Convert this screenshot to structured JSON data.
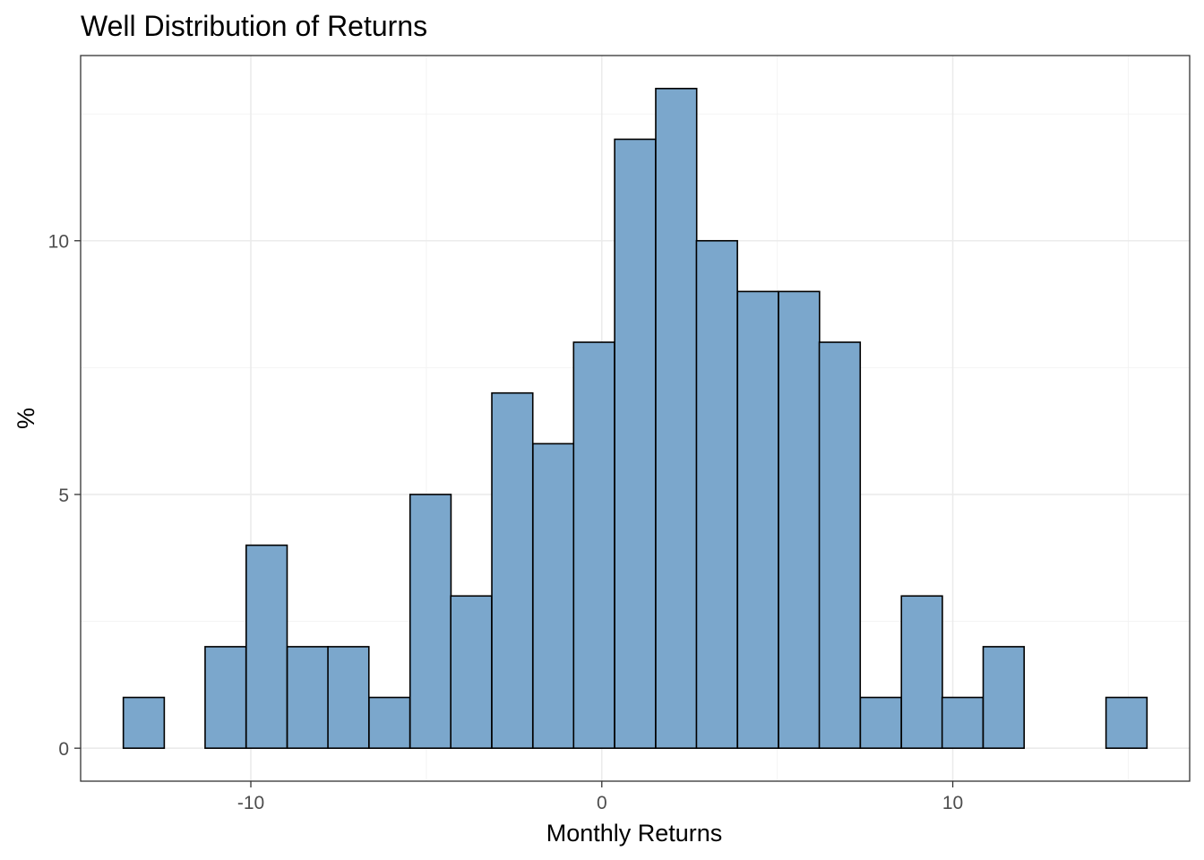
{
  "chart_data": {
    "type": "bar",
    "title": "Well Distribution of Returns",
    "xlabel": "Monthly Returns",
    "ylabel": "%",
    "bin_width": 1.1667,
    "bins": [
      {
        "center": -13.05,
        "value": 1
      },
      {
        "center": -11.88,
        "value": 0
      },
      {
        "center": -10.72,
        "value": 2
      },
      {
        "center": -9.55,
        "value": 4
      },
      {
        "center": -8.38,
        "value": 2
      },
      {
        "center": -7.22,
        "value": 2
      },
      {
        "center": -6.05,
        "value": 1
      },
      {
        "center": -4.88,
        "value": 5
      },
      {
        "center": -3.72,
        "value": 3
      },
      {
        "center": -2.55,
        "value": 7
      },
      {
        "center": -1.38,
        "value": 6
      },
      {
        "center": -0.22,
        "value": 8
      },
      {
        "center": 0.95,
        "value": 12
      },
      {
        "center": 2.12,
        "value": 13
      },
      {
        "center": 3.28,
        "value": 10
      },
      {
        "center": 4.45,
        "value": 9
      },
      {
        "center": 5.62,
        "value": 9
      },
      {
        "center": 6.78,
        "value": 8
      },
      {
        "center": 7.95,
        "value": 1
      },
      {
        "center": 9.12,
        "value": 3
      },
      {
        "center": 10.28,
        "value": 1
      },
      {
        "center": 11.45,
        "value": 2
      },
      {
        "center": 12.62,
        "value": 0
      },
      {
        "center": 13.78,
        "value": 0
      },
      {
        "center": 14.95,
        "value": 1
      }
    ],
    "xlim": [
      -14.85,
      16.75
    ],
    "ylim": [
      -0.65,
      13.65
    ],
    "x_ticks": [
      -10,
      0,
      10
    ],
    "x_tick_labels": [
      "-10",
      "0",
      "10"
    ],
    "y_ticks": [
      0,
      5,
      10
    ],
    "y_tick_labels": [
      "0",
      "5",
      "10"
    ],
    "grid": true,
    "colors": {
      "bar_fill": "#7ba7cc",
      "bar_outline": "#000000"
    }
  }
}
